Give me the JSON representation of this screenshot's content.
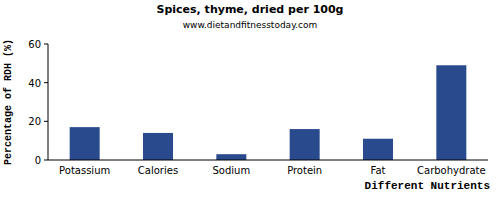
{
  "chart_data": {
    "type": "bar",
    "title": "Spices, thyme, dried per 100g",
    "subtitle": "www.dietandfitnesstoday.com",
    "x_label": "Different Nutrients",
    "y_label": "Percentage of RDH (%)",
    "categories": [
      "Potassium",
      "Calories",
      "Sodium",
      "Protein",
      "Fat",
      "Carbohydrate"
    ],
    "values": [
      17,
      14,
      3,
      16,
      11,
      49
    ],
    "color": "#2a4a8e",
    "ylim": [
      0,
      60
    ],
    "yticks": [
      0,
      20,
      40,
      60
    ],
    "grid": false
  }
}
